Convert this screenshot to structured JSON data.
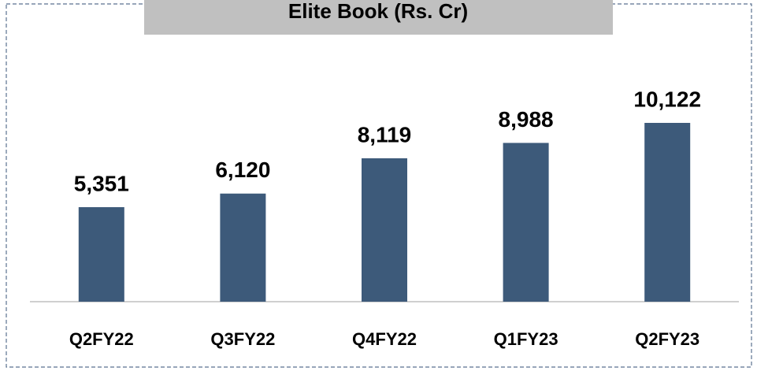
{
  "chart_data": {
    "type": "bar",
    "title": "Elite Book (Rs. Cr)",
    "categories": [
      "Q2FY22",
      "Q3FY22",
      "Q4FY22",
      "Q1FY23",
      "Q2FY23"
    ],
    "values": [
      5351,
      6120,
      8119,
      8988,
      10122
    ],
    "value_labels": [
      "5,351",
      "6,120",
      "8,119",
      "8,988",
      "10,122"
    ],
    "color": "#3d5a7a"
  }
}
